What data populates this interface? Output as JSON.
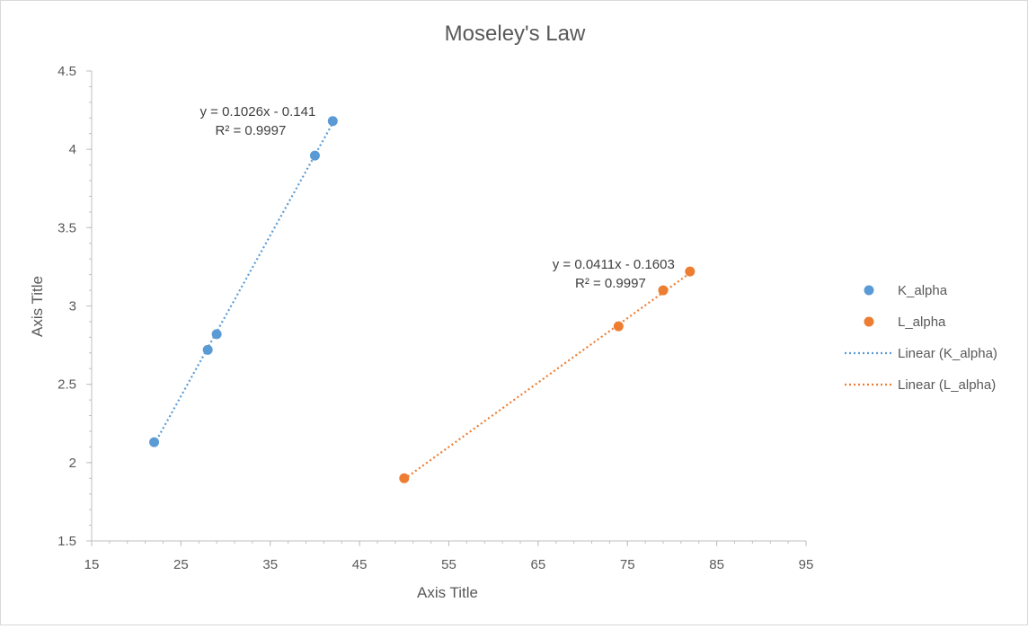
{
  "chart_data": {
    "type": "scatter",
    "title": "Moseley's Law",
    "xlabel": "Axis Title",
    "ylabel": "Axis Title",
    "xlim": [
      15,
      95
    ],
    "ylim": [
      1.5,
      4.5
    ],
    "xticks": [
      15,
      25,
      35,
      45,
      55,
      65,
      75,
      85,
      95
    ],
    "yticks": [
      1.5,
      2,
      2.5,
      3,
      3.5,
      4,
      4.5
    ],
    "x_minor_step": 2,
    "y_minor_step": 0.1,
    "grid": false,
    "legend_position": "right",
    "series": [
      {
        "name": "K_alpha",
        "color": "#5b9bd5",
        "points": [
          [
            22,
            2.13
          ],
          [
            28,
            2.72
          ],
          [
            29,
            2.82
          ],
          [
            40,
            3.96
          ],
          [
            42,
            4.18
          ]
        ],
        "trendline": {
          "name": "Linear (K_alpha)",
          "slope": 0.1026,
          "intercept": -0.141,
          "x_range": [
            22,
            42
          ],
          "equation": "y = 0.1026x - 0.141",
          "r_squared": "R² = 0.9997"
        }
      },
      {
        "name": "L_alpha",
        "color": "#ed7d31",
        "points": [
          [
            50,
            1.9
          ],
          [
            74,
            2.87
          ],
          [
            79,
            3.1
          ],
          [
            82,
            3.22
          ]
        ],
        "trendline": {
          "name": "Linear (L_alpha)",
          "slope": 0.0411,
          "intercept": -0.1603,
          "x_range": [
            50,
            82
          ],
          "equation": "y = 0.0411x - 0.1603",
          "r_squared": "R² = 0.9997"
        }
      }
    ]
  }
}
